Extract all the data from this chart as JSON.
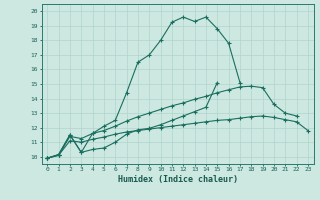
{
  "background_color": "#cce8e0",
  "grid_color": "#b0d4cc",
  "line_color": "#1a6e60",
  "xlabel": "Humidex (Indice chaleur)",
  "xlim": [
    -0.5,
    23.5
  ],
  "ylim": [
    9.5,
    20.5
  ],
  "line1_x": [
    0,
    1,
    2,
    3,
    4,
    5,
    6,
    7,
    8,
    9,
    10,
    11,
    12,
    13,
    14,
    15,
    16,
    17
  ],
  "line1_y": [
    9.9,
    10.15,
    11.5,
    10.3,
    11.6,
    12.1,
    12.5,
    14.4,
    16.5,
    17.0,
    18.0,
    19.25,
    19.6,
    19.3,
    19.6,
    18.8,
    17.8,
    15.1
  ],
  "line2_x": [
    0,
    1,
    2,
    3,
    4,
    5,
    6,
    7,
    8,
    9,
    10,
    11,
    12,
    13,
    14,
    15
  ],
  "line2_y": [
    9.9,
    10.15,
    11.5,
    10.3,
    10.5,
    10.6,
    11.0,
    11.55,
    11.85,
    11.95,
    12.2,
    12.5,
    12.8,
    13.1,
    13.4,
    15.1
  ],
  "line3_x": [
    0,
    1,
    2,
    3,
    4,
    5,
    6,
    7,
    8,
    9,
    10,
    11,
    12,
    13,
    14,
    15,
    16,
    17,
    18,
    19,
    20,
    21,
    22
  ],
  "line3_y": [
    9.9,
    10.1,
    11.4,
    11.25,
    11.6,
    11.8,
    12.1,
    12.45,
    12.75,
    13.0,
    13.25,
    13.5,
    13.7,
    13.95,
    14.15,
    14.4,
    14.6,
    14.8,
    14.85,
    14.75,
    13.6,
    13.0,
    12.8
  ],
  "line4_x": [
    0,
    1,
    2,
    3,
    4,
    5,
    6,
    7,
    8,
    9,
    10,
    11,
    12,
    13,
    14,
    15,
    16,
    17,
    18,
    19,
    20,
    21,
    22,
    23
  ],
  "line4_y": [
    9.9,
    10.1,
    11.1,
    11.0,
    11.2,
    11.35,
    11.55,
    11.7,
    11.8,
    11.9,
    12.0,
    12.1,
    12.2,
    12.3,
    12.4,
    12.5,
    12.55,
    12.65,
    12.75,
    12.8,
    12.7,
    12.55,
    12.4,
    11.8
  ]
}
